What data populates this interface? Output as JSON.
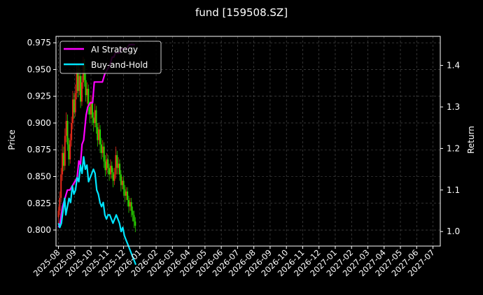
{
  "chart_data": {
    "type": "line",
    "title": "fund [159508.SZ]",
    "ylabel_left": "Price",
    "ylabel_right": "Return",
    "grid": true,
    "legend_placement": "top-left",
    "background": "#000000",
    "colors": {
      "ai": "#ff00ff",
      "bh": "#00e5ff",
      "up": "#e52b1a",
      "down": "#2bd900",
      "grid": "#555555",
      "axis": "#ffffff"
    },
    "y_left": {
      "ticks": [
        0.8,
        0.825,
        0.85,
        0.875,
        0.9,
        0.925,
        0.95,
        0.975
      ],
      "tick_labels": [
        "0.800",
        "0.825",
        "0.850",
        "0.875",
        "0.900",
        "0.925",
        "0.950",
        "0.975"
      ],
      "range": [
        0.785,
        0.981
      ]
    },
    "y_right": {
      "ticks": [
        1.0,
        1.1,
        1.2,
        1.3,
        1.4
      ],
      "tick_labels": [
        "1.0",
        "1.1",
        "1.2",
        "1.3",
        "1.4"
      ],
      "range": [
        0.965,
        1.47
      ]
    },
    "x_ticks": [
      "2025-08",
      "2025-09",
      "2025-10",
      "2025-11",
      "2025-12",
      "2026-01",
      "2026-02",
      "2026-03",
      "2026-04",
      "2026-05",
      "2026-06",
      "2026-07",
      "2026-08",
      "2026-09",
      "2026-10",
      "2026-11",
      "2026-12",
      "2027-01",
      "2027-02",
      "2027-03",
      "2027-04",
      "2027-05",
      "2027-06",
      "2027-07"
    ],
    "x_range_months": [
      -0.15,
      23.45
    ],
    "series": [
      {
        "name": "AI Strategy",
        "axis": "right",
        "points": [
          [
            0.0,
            1.01
          ],
          [
            0.1,
            1.02
          ],
          [
            0.25,
            1.06
          ],
          [
            0.4,
            1.08
          ],
          [
            0.55,
            1.1
          ],
          [
            0.7,
            1.1
          ],
          [
            0.85,
            1.11
          ],
          [
            1.0,
            1.12
          ],
          [
            1.15,
            1.13
          ],
          [
            1.25,
            1.17
          ],
          [
            1.35,
            1.16
          ],
          [
            1.45,
            1.21
          ],
          [
            1.55,
            1.22
          ],
          [
            1.7,
            1.28
          ],
          [
            1.8,
            1.3
          ],
          [
            1.95,
            1.31
          ],
          [
            2.1,
            1.31
          ],
          [
            2.2,
            1.36
          ],
          [
            2.35,
            1.36
          ],
          [
            2.5,
            1.36
          ],
          [
            2.7,
            1.36
          ],
          [
            2.85,
            1.38
          ],
          [
            3.0,
            1.39
          ],
          [
            3.15,
            1.4
          ],
          [
            3.3,
            1.42
          ],
          [
            3.4,
            1.42
          ],
          [
            3.5,
            1.43
          ],
          [
            3.6,
            1.43
          ],
          [
            3.75,
            1.43
          ],
          [
            3.9,
            1.44
          ],
          [
            4.05,
            1.44
          ],
          [
            4.2,
            1.44
          ],
          [
            4.35,
            1.45
          ],
          [
            4.5,
            1.45
          ],
          [
            4.7,
            1.45
          ]
        ]
      },
      {
        "name": "Buy-and-Hold",
        "axis": "right",
        "points": [
          [
            0.0,
            1.02
          ],
          [
            0.08,
            1.01
          ],
          [
            0.18,
            1.02
          ],
          [
            0.28,
            1.05
          ],
          [
            0.38,
            1.08
          ],
          [
            0.45,
            1.04
          ],
          [
            0.55,
            1.06
          ],
          [
            0.65,
            1.08
          ],
          [
            0.75,
            1.07
          ],
          [
            0.85,
            1.11
          ],
          [
            0.95,
            1.09
          ],
          [
            1.05,
            1.1
          ],
          [
            1.15,
            1.13
          ],
          [
            1.25,
            1.12
          ],
          [
            1.35,
            1.16
          ],
          [
            1.45,
            1.14
          ],
          [
            1.55,
            1.18
          ],
          [
            1.65,
            1.15
          ],
          [
            1.75,
            1.16
          ],
          [
            1.85,
            1.12
          ],
          [
            1.95,
            1.13
          ],
          [
            2.05,
            1.14
          ],
          [
            2.15,
            1.15
          ],
          [
            2.25,
            1.14
          ],
          [
            2.35,
            1.1
          ],
          [
            2.45,
            1.09
          ],
          [
            2.55,
            1.07
          ],
          [
            2.65,
            1.06
          ],
          [
            2.75,
            1.07
          ],
          [
            2.85,
            1.04
          ],
          [
            2.95,
            1.03
          ],
          [
            3.05,
            1.04
          ],
          [
            3.15,
            1.04
          ],
          [
            3.25,
            1.03
          ],
          [
            3.35,
            1.02
          ],
          [
            3.45,
            1.03
          ],
          [
            3.55,
            1.04
          ],
          [
            3.65,
            1.03
          ],
          [
            3.75,
            1.02
          ],
          [
            3.85,
            1.0
          ],
          [
            3.95,
            1.01
          ],
          [
            4.05,
            0.99
          ],
          [
            4.15,
            0.98
          ],
          [
            4.25,
            0.97
          ],
          [
            4.35,
            0.96
          ],
          [
            4.45,
            0.95
          ],
          [
            4.55,
            0.94
          ],
          [
            4.65,
            0.93
          ],
          [
            4.75,
            0.92
          ]
        ]
      }
    ],
    "candles": {
      "axis": "left",
      "points": [
        [
          0.0,
          0.812,
          0.818,
          0.806,
          0.822
        ],
        [
          0.08,
          0.818,
          0.83,
          0.814,
          0.836
        ],
        [
          0.16,
          0.83,
          0.852,
          0.826,
          0.858
        ],
        [
          0.24,
          0.852,
          0.872,
          0.846,
          0.88
        ],
        [
          0.32,
          0.872,
          0.86,
          0.855,
          0.878
        ],
        [
          0.4,
          0.86,
          0.888,
          0.856,
          0.895
        ],
        [
          0.48,
          0.888,
          0.902,
          0.882,
          0.91
        ],
        [
          0.56,
          0.902,
          0.88,
          0.874,
          0.908
        ],
        [
          0.64,
          0.88,
          0.866,
          0.86,
          0.886
        ],
        [
          0.72,
          0.866,
          0.884,
          0.862,
          0.89
        ],
        [
          0.8,
          0.884,
          0.9,
          0.878,
          0.906
        ],
        [
          0.88,
          0.9,
          0.922,
          0.894,
          0.93
        ],
        [
          0.96,
          0.922,
          0.91,
          0.904,
          0.928
        ],
        [
          1.04,
          0.91,
          0.928,
          0.906,
          0.936
        ],
        [
          1.12,
          0.928,
          0.948,
          0.922,
          0.955
        ],
        [
          1.2,
          0.948,
          0.93,
          0.924,
          0.954
        ],
        [
          1.28,
          0.93,
          0.944,
          0.926,
          0.952
        ],
        [
          1.36,
          0.944,
          0.92,
          0.914,
          0.95
        ],
        [
          1.44,
          0.92,
          0.938,
          0.916,
          0.944
        ],
        [
          1.52,
          0.938,
          0.955,
          0.932,
          0.962
        ],
        [
          1.6,
          0.955,
          0.94,
          0.934,
          0.96
        ],
        [
          1.68,
          0.94,
          0.926,
          0.92,
          0.946
        ],
        [
          1.76,
          0.926,
          0.932,
          0.918,
          0.938
        ],
        [
          1.84,
          0.932,
          0.915,
          0.908,
          0.936
        ],
        [
          1.92,
          0.915,
          0.908,
          0.9,
          0.92
        ],
        [
          2.0,
          0.908,
          0.92,
          0.904,
          0.926
        ],
        [
          2.08,
          0.92,
          0.905,
          0.898,
          0.924
        ],
        [
          2.16,
          0.905,
          0.9,
          0.892,
          0.91
        ],
        [
          2.24,
          0.9,
          0.912,
          0.896,
          0.918
        ],
        [
          2.32,
          0.912,
          0.896,
          0.89,
          0.916
        ],
        [
          2.4,
          0.896,
          0.884,
          0.878,
          0.9
        ],
        [
          2.48,
          0.884,
          0.894,
          0.88,
          0.9
        ],
        [
          2.56,
          0.894,
          0.88,
          0.872,
          0.898
        ],
        [
          2.64,
          0.88,
          0.872,
          0.866,
          0.886
        ],
        [
          2.72,
          0.872,
          0.878,
          0.868,
          0.884
        ],
        [
          2.8,
          0.878,
          0.864,
          0.858,
          0.882
        ],
        [
          2.88,
          0.864,
          0.856,
          0.85,
          0.87
        ],
        [
          2.96,
          0.856,
          0.866,
          0.852,
          0.872
        ],
        [
          3.04,
          0.866,
          0.858,
          0.852,
          0.87
        ],
        [
          3.12,
          0.858,
          0.852,
          0.846,
          0.862
        ],
        [
          3.2,
          0.852,
          0.86,
          0.848,
          0.866
        ],
        [
          3.28,
          0.86,
          0.854,
          0.848,
          0.864
        ],
        [
          3.36,
          0.854,
          0.846,
          0.84,
          0.858
        ],
        [
          3.44,
          0.846,
          0.852,
          0.842,
          0.858
        ],
        [
          3.52,
          0.852,
          0.87,
          0.848,
          0.878
        ],
        [
          3.6,
          0.87,
          0.858,
          0.852,
          0.874
        ],
        [
          3.68,
          0.858,
          0.862,
          0.852,
          0.868
        ],
        [
          3.76,
          0.862,
          0.852,
          0.846,
          0.866
        ],
        [
          3.84,
          0.852,
          0.842,
          0.836,
          0.856
        ],
        [
          3.92,
          0.842,
          0.846,
          0.838,
          0.85
        ],
        [
          4.0,
          0.846,
          0.838,
          0.832,
          0.85
        ],
        [
          4.08,
          0.838,
          0.832,
          0.826,
          0.842
        ],
        [
          4.16,
          0.832,
          0.836,
          0.828,
          0.84
        ],
        [
          4.24,
          0.836,
          0.828,
          0.822,
          0.84
        ],
        [
          4.32,
          0.828,
          0.822,
          0.816,
          0.832
        ],
        [
          4.4,
          0.822,
          0.826,
          0.818,
          0.83
        ],
        [
          4.48,
          0.826,
          0.818,
          0.812,
          0.83
        ],
        [
          4.56,
          0.818,
          0.814,
          0.808,
          0.822
        ],
        [
          4.64,
          0.814,
          0.808,
          0.802,
          0.818
        ],
        [
          4.72,
          0.808,
          0.804,
          0.798,
          0.812
        ]
      ]
    }
  }
}
